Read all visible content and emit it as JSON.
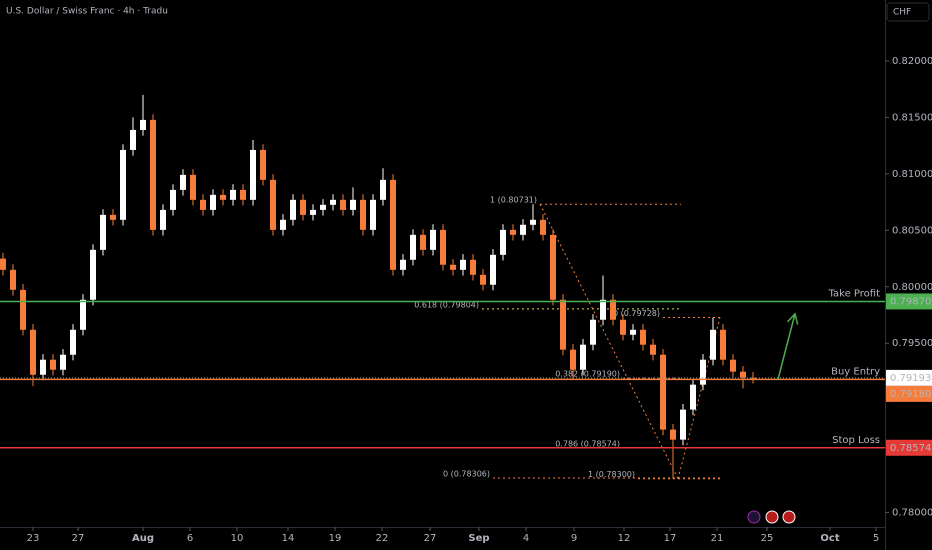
{
  "chart_data": {
    "type": "candlestick",
    "title": "U.S. Dollar / Swiss Franc · 4h · Tradu",
    "currency": "CHF",
    "up_color": "#ffffff",
    "down_color": "#f57c3a",
    "x": [
      0,
      1,
      2,
      3,
      4,
      5,
      6,
      7,
      8,
      9,
      10,
      11,
      12,
      13,
      14,
      15,
      16,
      17,
      18,
      19,
      20,
      21,
      22,
      23,
      24,
      25,
      26,
      27,
      28,
      29,
      30,
      31,
      32,
      33,
      34,
      35,
      36,
      37,
      38,
      39,
      40,
      41,
      42,
      43,
      44,
      45,
      46,
      47,
      48,
      49,
      50,
      51,
      52,
      53,
      54,
      55,
      56,
      57,
      58,
      59,
      60,
      61,
      62,
      63,
      64,
      65,
      66,
      67,
      68,
      69,
      70,
      71,
      72,
      73,
      74,
      75
    ],
    "open": [
      0.8025,
      0.8015,
      0.79973,
      0.79619,
      0.79221,
      0.79354,
      0.79265,
      0.79398,
      0.79619,
      0.79885,
      0.80327,
      0.80637,
      0.80593,
      0.81212,
      0.81389,
      0.81478,
      0.80504,
      0.80681,
      0.80858,
      0.80991,
      0.8077,
      0.80681,
      0.80814,
      0.8077,
      0.80858,
      0.8077,
      0.81212,
      0.80947,
      0.80504,
      0.80593,
      0.8077,
      0.80637,
      0.80681,
      0.80726,
      0.8077,
      0.80681,
      0.8077,
      0.80504,
      0.8077,
      0.80947,
      0.8015,
      0.80239,
      0.8046,
      0.80327,
      0.80504,
      0.80195,
      0.8015,
      0.80239,
      0.80106,
      0.80018,
      0.80283,
      0.80504,
      0.8046,
      0.80549,
      0.80593,
      0.8046,
      0.79885,
      0.79443,
      0.79265,
      0.79487,
      0.79708,
      0.79885,
      0.79708,
      0.79575,
      0.79619,
      0.79487,
      0.79398,
      0.78735,
      0.78646,
      0.78912,
      0.79133,
      0.79354,
      0.79619,
      0.79354,
      0.79248,
      0.79195
    ],
    "high": [
      0.803,
      0.802,
      0.80023,
      0.79669,
      0.79404,
      0.79404,
      0.79448,
      0.79669,
      0.79935,
      0.80377,
      0.80687,
      0.80687,
      0.81262,
      0.815,
      0.817,
      0.81528,
      0.80731,
      0.80908,
      0.81041,
      0.81041,
      0.8082,
      0.80864,
      0.80864,
      0.80908,
      0.80908,
      0.813,
      0.81262,
      0.80997,
      0.80643,
      0.8082,
      0.8082,
      0.80731,
      0.80776,
      0.8082,
      0.8082,
      0.8088,
      0.8082,
      0.8082,
      0.8105,
      0.80997,
      0.80289,
      0.8051,
      0.8051,
      0.80554,
      0.80554,
      0.80245,
      0.80289,
      0.80289,
      0.80156,
      0.80333,
      0.80554,
      0.80554,
      0.80599,
      0.80731,
      0.80643,
      0.8051,
      0.79935,
      0.79493,
      0.79537,
      0.79758,
      0.801,
      0.79935,
      0.79758,
      0.79669,
      0.79669,
      0.79537,
      0.79448,
      0.78785,
      0.78962,
      0.79183,
      0.79404,
      0.79728,
      0.79669,
      0.79404,
      0.79298,
      0.79245
    ],
    "low": [
      0.801,
      0.79923,
      0.79569,
      0.7912,
      0.79171,
      0.79215,
      0.79215,
      0.79348,
      0.79569,
      0.79835,
      0.80277,
      0.80543,
      0.80543,
      0.81162,
      0.81339,
      0.80454,
      0.80454,
      0.80631,
      0.80808,
      0.8072,
      0.80631,
      0.80631,
      0.8072,
      0.8072,
      0.8072,
      0.8072,
      0.80897,
      0.80454,
      0.80454,
      0.80543,
      0.80587,
      0.80587,
      0.80631,
      0.80676,
      0.80631,
      0.80631,
      0.80454,
      0.80454,
      0.8072,
      0.801,
      0.801,
      0.80189,
      0.80277,
      0.80277,
      0.80145,
      0.801,
      0.801,
      0.80056,
      0.79968,
      0.79968,
      0.80233,
      0.8041,
      0.8041,
      0.80499,
      0.8041,
      0.79835,
      0.79393,
      0.7918,
      0.79215,
      0.79437,
      0.79658,
      0.79658,
      0.79525,
      0.79525,
      0.79437,
      0.79348,
      0.78685,
      0.783,
      0.78596,
      0.78862,
      0.79083,
      0.79304,
      0.79304,
      0.79198,
      0.791,
      0.79143
    ],
    "close": [
      0.8015,
      0.79973,
      0.79619,
      0.79221,
      0.79354,
      0.79265,
      0.79398,
      0.79619,
      0.79885,
      0.80327,
      0.80637,
      0.80593,
      0.81212,
      0.81389,
      0.81478,
      0.80504,
      0.80681,
      0.80858,
      0.80991,
      0.8077,
      0.80681,
      0.80814,
      0.8077,
      0.80858,
      0.8077,
      0.81212,
      0.80947,
      0.80504,
      0.80593,
      0.8077,
      0.80637,
      0.80681,
      0.80726,
      0.8077,
      0.80681,
      0.8077,
      0.80504,
      0.8077,
      0.80947,
      0.8015,
      0.80239,
      0.8046,
      0.80327,
      0.80504,
      0.80195,
      0.8015,
      0.80239,
      0.80106,
      0.80018,
      0.80283,
      0.80504,
      0.8046,
      0.80549,
      0.80593,
      0.8046,
      0.79885,
      0.79443,
      0.79265,
      0.79487,
      0.79708,
      0.79885,
      0.79708,
      0.79575,
      0.79619,
      0.79487,
      0.79398,
      0.78735,
      0.78646,
      0.78912,
      0.79133,
      0.79354,
      0.79619,
      0.79354,
      0.79248,
      0.79195,
      0.79193
    ],
    "xlim": [
      -0.3,
      88.2
    ],
    "xticks": [
      {
        "value": 3.0,
        "label": "23"
      },
      {
        "value": 7.5,
        "label": "27"
      },
      {
        "value": 14.0,
        "label": "Aug"
      },
      {
        "value": 18.7,
        "label": "6"
      },
      {
        "value": 23.4,
        "label": "10"
      },
      {
        "value": 28.5,
        "label": "14"
      },
      {
        "value": 33.2,
        "label": "19"
      },
      {
        "value": 37.9,
        "label": "22"
      },
      {
        "value": 42.7,
        "label": "27"
      },
      {
        "value": 47.6,
        "label": "Sep"
      },
      {
        "value": 52.3,
        "label": "4"
      },
      {
        "value": 57.1,
        "label": "9"
      },
      {
        "value": 62.1,
        "label": "12"
      },
      {
        "value": 66.7,
        "label": "17"
      },
      {
        "value": 71.4,
        "label": "21"
      },
      {
        "value": 76.4,
        "label": "25"
      },
      {
        "value": 82.7,
        "label": "Oct"
      },
      {
        "value": 87.3,
        "label": "5"
      }
    ],
    "ylim": [
      0.7789,
      0.8254
    ],
    "yticks": [
      {
        "value": 0.82,
        "label": "0.82000"
      },
      {
        "value": 0.815,
        "label": "0.81500"
      },
      {
        "value": 0.81,
        "label": "0.81000"
      },
      {
        "value": 0.805,
        "label": "0.80500"
      },
      {
        "value": 0.8,
        "label": "0.80000"
      },
      {
        "value": 0.795,
        "label": "0.79500"
      },
      {
        "value": 0.78,
        "label": "0.78000"
      }
    ],
    "levels": [
      {
        "name": "Take Profit",
        "value": 0.7987,
        "label": "0.79870",
        "color": "#4caf50"
      },
      {
        "name": "Buy Entry",
        "value": 0.7918,
        "label": "0.79180",
        "color": "#f57c3a"
      },
      {
        "name": "Stop Loss",
        "value": 0.78574,
        "label": "0.78574",
        "color": "#e53935"
      }
    ],
    "last_price": {
      "value": 0.79193,
      "label": "0.79193"
    },
    "fib_levels": [
      {
        "label": "1 (0.80731)",
        "value": 0.80731,
        "x_range": [
          53.7,
          67.8
        ],
        "color": "#f57c3a"
      },
      {
        "label": "0.618 (0.79804)",
        "value": 0.79804,
        "x_range": [
          47.9,
          67.8
        ],
        "color": "#e6d35a"
      },
      {
        "label": "0 (0.79728)",
        "value": 0.79728,
        "x_range": [
          66.0,
          71.7
        ],
        "color": "#f57c3a"
      },
      {
        "label": "0.382 (0.79190)",
        "value": 0.7919,
        "x_range": [
          62.0,
          68.0
        ],
        "color": "#f57c3a"
      },
      {
        "label": "0.786 (0.78574)",
        "value": 0.78574,
        "x_range": [
          62.0,
          71.7
        ],
        "color": "#f57c3a"
      },
      {
        "label": "1 (0.78300)",
        "value": 0.783,
        "x_range": [
          63.5,
          71.7
        ],
        "color": "#f57c3a"
      },
      {
        "label": "0 (0.78306)",
        "value": 0.78306,
        "x_range": [
          49.0,
          71.7
        ],
        "color": "#f57c3a"
      }
    ],
    "trendlines": [
      {
        "from": [
          53.7,
          0.80731
        ],
        "to": [
          67.5,
          0.783
        ],
        "color": "#f57c3a"
      },
      {
        "from": [
          67.5,
          0.783
        ],
        "to": [
          71.7,
          0.79728
        ],
        "color": "#f57c3a"
      }
    ],
    "arrow": {
      "from": [
        77.5,
        0.7918
      ],
      "to": [
        79.2,
        0.7976
      ],
      "color": "#4caf50"
    }
  }
}
